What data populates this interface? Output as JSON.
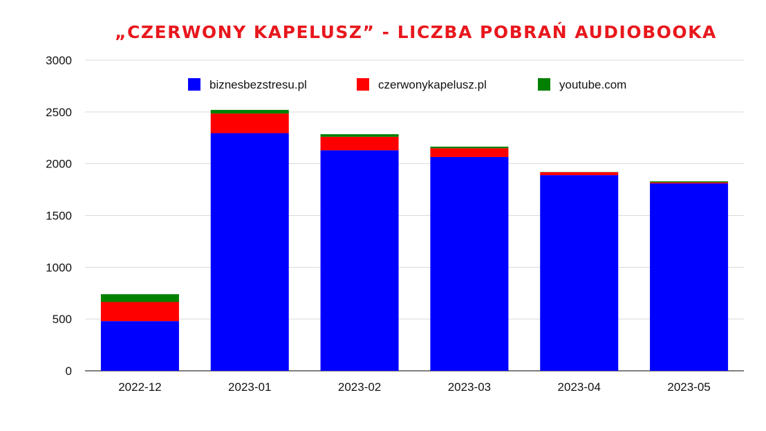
{
  "chart_data": {
    "type": "bar",
    "stacked": true,
    "title": "„CZERWONY KAPELUSZ” - LICZBA POBRAŃ AUDIOBOOKA",
    "title_color": "#e8171d",
    "xlabel": "",
    "ylabel": "",
    "categories": [
      "2022-12",
      "2023-01",
      "2023-02",
      "2023-03",
      "2023-04",
      "2023-05"
    ],
    "series": [
      {
        "name": "biznesbezstresu.pl",
        "color": "#0000ff",
        "values": [
          480,
          2295,
          2130,
          2065,
          1890,
          1810
        ]
      },
      {
        "name": "czerwonykapelusz.pl",
        "color": "#ff0000",
        "values": [
          185,
          190,
          130,
          85,
          28,
          10
        ]
      },
      {
        "name": "youtube.com",
        "color": "#008000",
        "values": [
          75,
          35,
          25,
          15,
          2,
          10
        ]
      }
    ],
    "ylim": [
      0,
      3000
    ],
    "yticks": [
      0,
      500,
      1000,
      1500,
      2000,
      2500,
      3000
    ],
    "grid": true,
    "legend_position": "top"
  }
}
